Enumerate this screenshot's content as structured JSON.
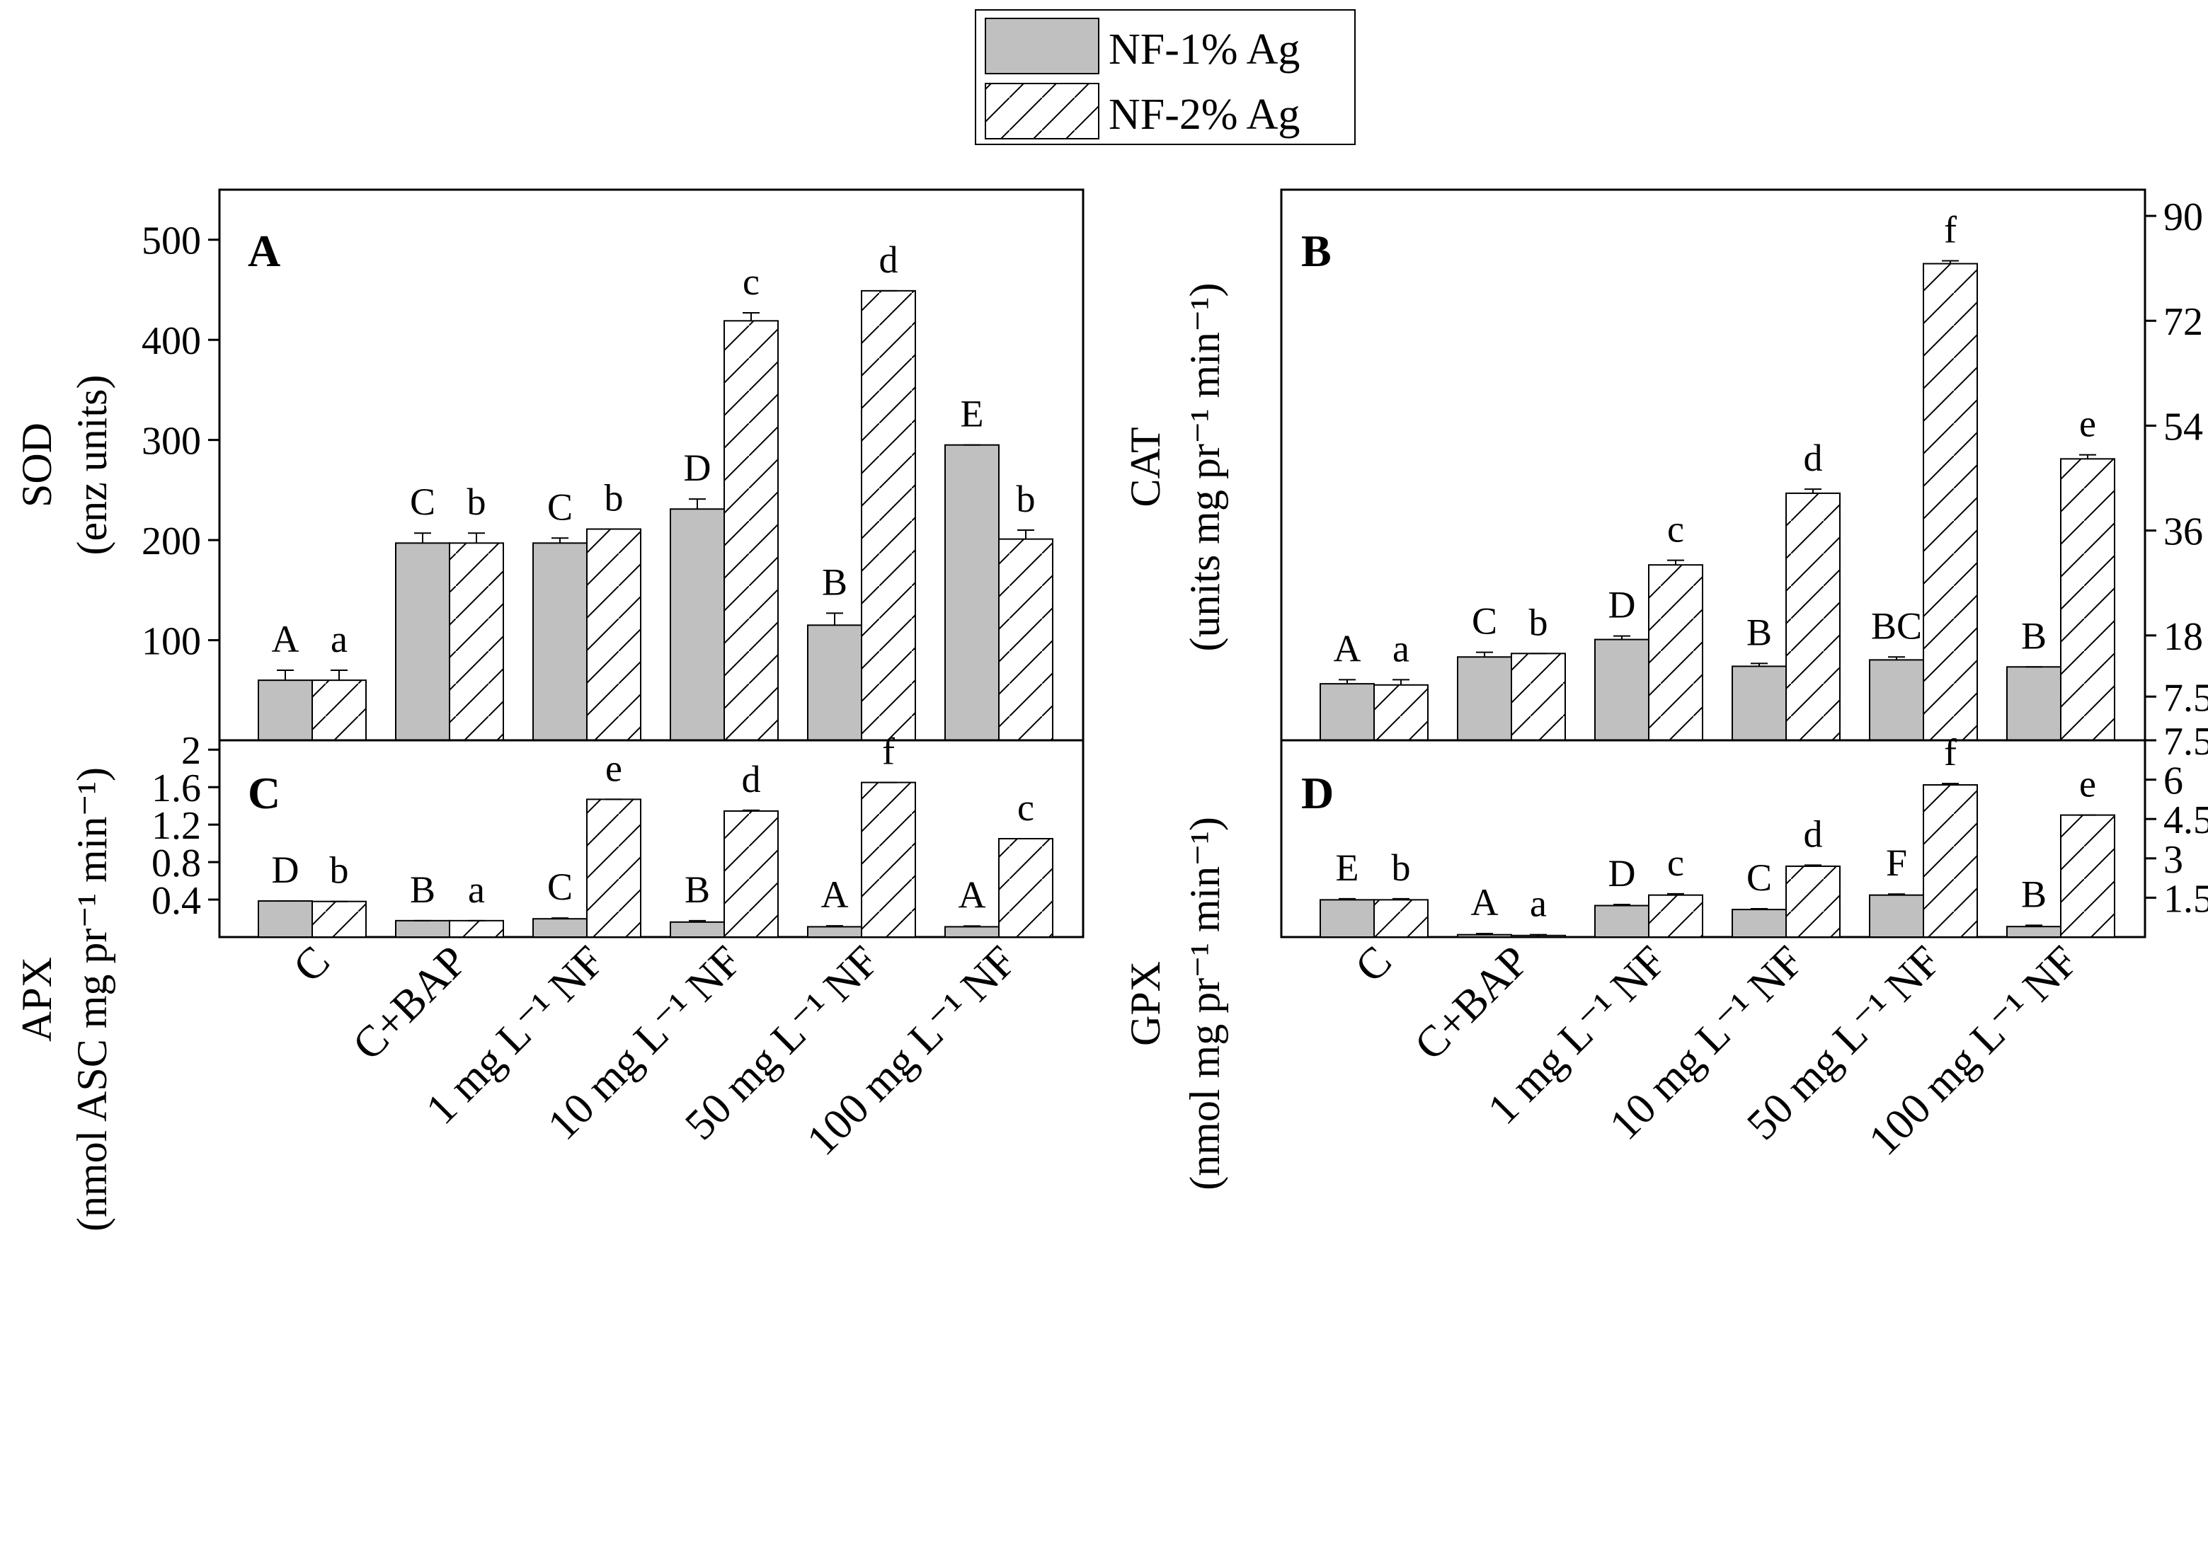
{
  "legend": [
    {
      "name": "NF-1% Ag",
      "style": "solid"
    },
    {
      "name": "NF-2% Ag",
      "style": "hatch"
    }
  ],
  "colors": {
    "solid_bar": "#c0c0c0",
    "hatch_bar": "#ffffff",
    "axis": "#000000"
  },
  "chart_data": [
    {
      "type": "bar",
      "panel": "A",
      "ylabel": "SOD",
      "ylabel_units": "(enz units)",
      "ylim": [
        0,
        550
      ],
      "yticks": [
        100,
        200,
        300,
        400,
        500
      ],
      "y_axis_side": "left",
      "categories": [
        "C",
        "C+BAP",
        "1 mg L⁻¹ NF",
        "10 mg L⁻¹ NF",
        "50 mg L⁻¹ NF",
        "100 mg L⁻¹ NF"
      ],
      "series": [
        {
          "name": "NF-1% Ag",
          "values": [
            60,
            197,
            197,
            231,
            115,
            295
          ],
          "errors": [
            10,
            10,
            5,
            10,
            12,
            0
          ],
          "letters": [
            "A",
            "C",
            "C",
            "D",
            "B",
            "E"
          ]
        },
        {
          "name": "NF-2% Ag",
          "values": [
            60,
            197,
            211,
            419,
            449,
            201
          ],
          "errors": [
            10,
            10,
            0,
            8,
            0,
            9
          ],
          "letters": [
            "a",
            "b",
            "b",
            "c",
            "d",
            "b"
          ]
        }
      ]
    },
    {
      "type": "bar",
      "panel": "B",
      "ylabel": "CAT",
      "ylabel_units": "(units mg pr⁻¹ min⁻¹)",
      "ylim": [
        0,
        94.5
      ],
      "yticks": [
        7.5,
        18,
        36,
        54,
        72,
        90
      ],
      "y_axis_side": "right",
      "categories": [
        "C",
        "C+BAP",
        "1 mg L⁻¹ NF",
        "10 mg L⁻¹ NF",
        "50 mg L⁻¹ NF",
        "100 mg L⁻¹ NF"
      ],
      "series": [
        {
          "name": "NF-1% Ag",
          "values": [
            9.7,
            14.3,
            17.3,
            12.7,
            13.8,
            12.6
          ],
          "errors": [
            0.7,
            0.8,
            0.6,
            0.5,
            0.5,
            0
          ],
          "letters": [
            "A",
            "C",
            "D",
            "B",
            "BC",
            "B"
          ]
        },
        {
          "name": "NF-2% Ag",
          "values": [
            9.5,
            14.9,
            30.1,
            42.4,
            81.8,
            48.3
          ],
          "errors": [
            0.9,
            0,
            0.8,
            0.7,
            0.5,
            0.7
          ],
          "letters": [
            "a",
            "b",
            "c",
            "d",
            "f",
            "e"
          ]
        }
      ]
    },
    {
      "type": "bar",
      "panel": "C",
      "ylabel": "APX",
      "ylabel_units": "(nmol ASC mg pr⁻¹ min⁻¹)",
      "ylim": [
        0,
        2.1
      ],
      "yticks": [
        0.4,
        0.8,
        1.2,
        1.6,
        2.0
      ],
      "y_axis_side": "left",
      "categories": [
        "C",
        "C+BAP",
        "1 mg L⁻¹ NF",
        "10 mg L⁻¹ NF",
        "50 mg L⁻¹ NF",
        "100 mg L⁻¹ NF"
      ],
      "series": [
        {
          "name": "NF-1% Ag",
          "values": [
            0.385,
            0.175,
            0.195,
            0.16,
            0.11,
            0.11
          ],
          "errors": [
            0,
            0,
            0.008,
            0.015,
            0.01,
            0.008
          ],
          "letters": [
            "D",
            "B",
            "C",
            "B",
            "A",
            "A"
          ]
        },
        {
          "name": "NF-2% Ag",
          "values": [
            0.38,
            0.175,
            1.47,
            1.345,
            1.65,
            1.05
          ],
          "errors": [
            0,
            0,
            0,
            0.008,
            0,
            0
          ],
          "letters": [
            "b",
            "a",
            "e",
            "d",
            "f",
            "c"
          ]
        }
      ]
    },
    {
      "type": "bar",
      "panel": "D",
      "ylabel": "GPX",
      "ylabel_units": "(nmol mg pr⁻¹ min⁻¹)",
      "ylim": [
        0,
        7.5
      ],
      "yticks": [
        1.5,
        3.0,
        4.5,
        6.0,
        7.5
      ],
      "y_axis_side": "right",
      "categories": [
        "C",
        "C+BAP",
        "1 mg L⁻¹ NF",
        "10 mg L⁻¹ NF",
        "50 mg L⁻¹ NF",
        "100 mg L⁻¹ NF"
      ],
      "series": [
        {
          "name": "NF-1% Ag",
          "values": [
            1.42,
            0.09,
            1.2,
            1.05,
            1.6,
            0.4
          ],
          "errors": [
            0.04,
            0.04,
            0.04,
            0.03,
            0.04,
            0.05
          ],
          "letters": [
            "E",
            "A",
            "D",
            "C",
            "F",
            "B"
          ]
        },
        {
          "name": "NF-2% Ag",
          "values": [
            1.42,
            0.06,
            1.6,
            2.7,
            5.8,
            4.65
          ],
          "errors": [
            0.04,
            0.03,
            0.05,
            0.04,
            0.05,
            0
          ],
          "letters": [
            "b",
            "a",
            "c",
            "d",
            "f",
            "e"
          ]
        }
      ]
    }
  ]
}
